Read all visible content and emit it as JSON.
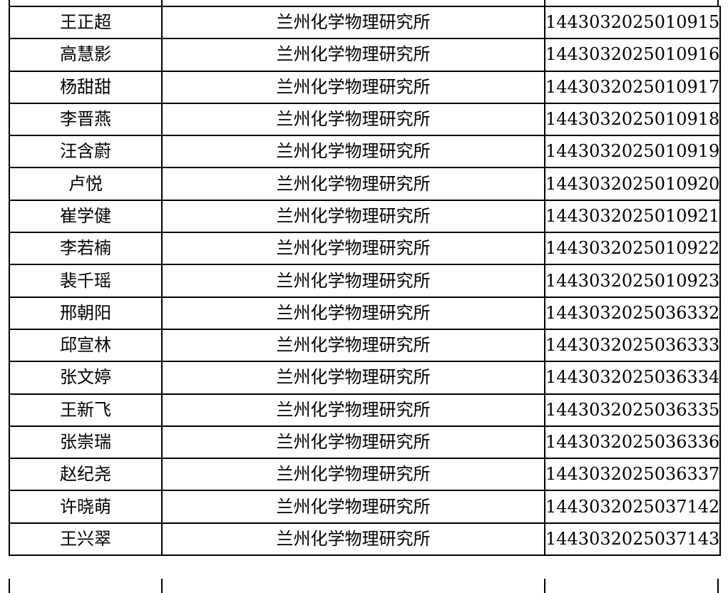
{
  "rows": [
    {
      "name": "王正超",
      "institute": "兰州化学物理研究所",
      "id": "1443032025010915"
    },
    {
      "name": "高慧影",
      "institute": "兰州化学物理研究所",
      "id": "1443032025010916"
    },
    {
      "name": "杨甜甜",
      "institute": "兰州化学物理研究所",
      "id": "1443032025010917"
    },
    {
      "name": "李晋燕",
      "institute": "兰州化学物理研究所",
      "id": "1443032025010918"
    },
    {
      "name": "汪含蔚",
      "institute": "兰州化学物理研究所",
      "id": "1443032025010919"
    },
    {
      "name": "卢悦",
      "institute": "兰州化学物理研究所",
      "id": "1443032025010920"
    },
    {
      "name": "崔学健",
      "institute": "兰州化学物理研究所",
      "id": "1443032025010921"
    },
    {
      "name": "李若楠",
      "institute": "兰州化学物理研究所",
      "id": "1443032025010922"
    },
    {
      "name": "裴千瑶",
      "institute": "兰州化学物理研究所",
      "id": "1443032025010923"
    },
    {
      "name": "邢朝阳",
      "institute": "兰州化学物理研究所",
      "id": "1443032025036332"
    },
    {
      "name": "邱宣林",
      "institute": "兰州化学物理研究所",
      "id": "1443032025036333"
    },
    {
      "name": "张文婷",
      "institute": "兰州化学物理研究所",
      "id": "1443032025036334"
    },
    {
      "name": "王新飞",
      "institute": "兰州化学物理研究所",
      "id": "1443032025036335"
    },
    {
      "name": "张崇瑞",
      "institute": "兰州化学物理研究所",
      "id": "1443032025036336"
    },
    {
      "name": "赵纪尧",
      "institute": "兰州化学物理研究所",
      "id": "1443032025036337"
    },
    {
      "name": "许晓萌",
      "institute": "兰州化学物理研究所",
      "id": "1443032025037142"
    },
    {
      "name": "王兴翠",
      "institute": "兰州化学物理研究所",
      "id": "1443032025037143"
    }
  ]
}
